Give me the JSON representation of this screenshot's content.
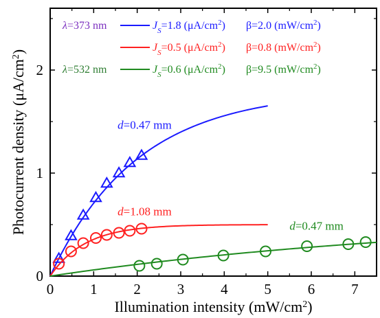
{
  "chart_data": {
    "type": "scatter",
    "title": "",
    "xlabel": "Illumination intensity (mW/cm",
    "xlabel_sup": "2",
    "xlabel_end": ")",
    "ylabel": "Photocurrent density  (μA/cm",
    "ylabel_sup": "2",
    "ylabel_end": ")",
    "xlim": [
      0,
      7.5
    ],
    "ylim": [
      0,
      2.6
    ],
    "x_ticks": [
      0,
      1,
      2,
      3,
      4,
      5,
      6,
      7
    ],
    "x_tick_labels": [
      "0",
      "1",
      "2",
      "3",
      "4",
      "5",
      "6",
      "7"
    ],
    "y_ticks": [
      0,
      1,
      2
    ],
    "y_tick_labels": [
      "0",
      "1",
      "2"
    ],
    "grid": false,
    "legend_position": "top",
    "colors": {
      "blue": "#1a1aff",
      "red": "#ff2020",
      "green": "#1f8a1f",
      "axis": "#000000",
      "violet": "#7b2fbf",
      "darkgreen": "#2e7d32"
    },
    "legend": [
      {
        "wavelength": "λ=373 nm",
        "wl_color": "#7b2fbf",
        "js_prefix": "J",
        "js_sub": "S",
        "js_value": "=1.8 (μA/cm",
        "js_sup": "2",
        "js_end": ")",
        "beta": "β=2.0 (mW/cm",
        "beta_sup": "2",
        "beta_end": ")",
        "color": "#1a1aff"
      },
      {
        "wavelength": "",
        "wl_color": "#7b2fbf",
        "js_prefix": "J",
        "js_sub": "S",
        "js_value": "=0.5 (μA/cm",
        "js_sup": "2",
        "js_end": ")",
        "beta": "β=0.8 (mW/cm",
        "beta_sup": "2",
        "beta_end": ")",
        "color": "#ff2020"
      },
      {
        "wavelength": "λ=532 nm",
        "wl_color": "#2e7d32",
        "js_prefix": "J",
        "js_sub": "S",
        "js_value": "=0.6 (μA/cm",
        "js_sup": "2",
        "js_end": ")",
        "beta": "β=9.5 (mW/cm",
        "beta_sup": "2",
        "beta_end": ")",
        "color": "#1f8a1f"
      }
    ],
    "series": [
      {
        "name": "d=0.47 mm",
        "color": "#1a1aff",
        "marker": "triangle",
        "js": 1.8,
        "beta": 2.0,
        "fit_x_max": 5.0,
        "points": [
          {
            "x": 0.2,
            "y": 0.17
          },
          {
            "x": 0.48,
            "y": 0.39
          },
          {
            "x": 0.76,
            "y": 0.59
          },
          {
            "x": 1.05,
            "y": 0.76
          },
          {
            "x": 1.3,
            "y": 0.9
          },
          {
            "x": 1.58,
            "y": 1.0
          },
          {
            "x": 1.83,
            "y": 1.1
          },
          {
            "x": 2.1,
            "y": 1.17
          }
        ],
        "annotation": {
          "text_prefix": "d",
          "text_value": "=0.47 mm",
          "x": 1.55,
          "y": 1.43
        }
      },
      {
        "name": "d=1.08 mm",
        "color": "#ff2020",
        "marker": "circle",
        "js": 0.5,
        "beta": 0.8,
        "fit_x_max": 5.0,
        "points": [
          {
            "x": 0.2,
            "y": 0.12
          },
          {
            "x": 0.48,
            "y": 0.24
          },
          {
            "x": 0.76,
            "y": 0.32
          },
          {
            "x": 1.05,
            "y": 0.37
          },
          {
            "x": 1.3,
            "y": 0.4
          },
          {
            "x": 1.58,
            "y": 0.42
          },
          {
            "x": 1.83,
            "y": 0.44
          },
          {
            "x": 2.1,
            "y": 0.46
          }
        ],
        "annotation": {
          "text_prefix": "d",
          "text_value": "=1.08 mm",
          "x": 1.55,
          "y": 0.59
        }
      },
      {
        "name": "d=0.47 mm",
        "color": "#1f8a1f",
        "marker": "circle",
        "js": 0.6,
        "beta": 9.5,
        "fit_x_max": 7.5,
        "points": [
          {
            "x": 2.05,
            "y": 0.1
          },
          {
            "x": 2.45,
            "y": 0.12
          },
          {
            "x": 3.05,
            "y": 0.16
          },
          {
            "x": 3.98,
            "y": 0.2
          },
          {
            "x": 4.95,
            "y": 0.24
          },
          {
            "x": 5.9,
            "y": 0.29
          },
          {
            "x": 6.85,
            "y": 0.31
          },
          {
            "x": 7.25,
            "y": 0.33
          }
        ],
        "annotation": {
          "text_prefix": "d",
          "text_value": "=0.47 mm",
          "x": 5.5,
          "y": 0.45
        }
      }
    ]
  }
}
